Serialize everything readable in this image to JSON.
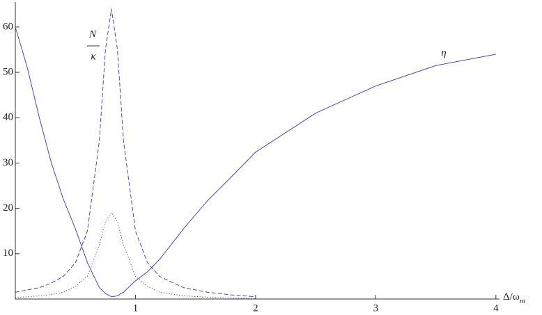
{
  "chart_data": {
    "type": "line",
    "x": [
      0,
      0.1,
      0.2,
      0.3,
      0.4,
      0.5,
      0.6,
      0.7,
      0.75,
      0.8,
      0.85,
      0.9,
      1.0,
      1.1,
      1.2,
      1.4,
      1.6,
      1.8,
      2.0,
      2.5,
      3.0,
      3.5,
      4.0
    ],
    "series": [
      {
        "color": "#4b4ba3",
        "dash": "solid",
        "values": [
          60,
          51,
          40,
          30,
          22,
          15.5,
          8,
          2.5,
          1.2,
          0.5,
          0.7,
          1.5,
          4,
          6,
          8.7,
          15.5,
          21.7,
          27,
          32.4,
          41,
          47,
          51.5,
          54
        ]
      },
      {
        "color": "#4b4ba3",
        "dash": "dashed",
        "values": [
          1.5,
          2,
          2.5,
          3.5,
          5,
          8,
          15,
          35,
          55,
          64,
          55,
          35,
          15,
          8,
          5,
          2.5,
          1.5,
          0.9,
          0.5,
          null,
          null,
          null,
          null
        ]
      },
      {
        "color": "#4b4ba3",
        "dash": "dotted",
        "values": [
          0.3,
          0.5,
          0.7,
          1,
          1.5,
          2.8,
          5,
          12,
          17,
          19,
          17,
          12,
          5,
          2.8,
          1.5,
          0.7,
          0.4,
          0.2,
          0.1,
          null,
          null,
          null,
          null
        ]
      }
    ],
    "xlabel": {
      "main": "Δ/ω",
      "sub": "m"
    },
    "annotations": {
      "numerator": "N",
      "denominator": "κ",
      "eta": "η"
    },
    "xlim": [
      0,
      4.03
    ],
    "ylim": [
      0,
      65.5
    ],
    "xticks": [
      1,
      2,
      3,
      4
    ],
    "yticks": [
      10,
      20,
      30,
      40,
      50,
      60
    ],
    "grid": false
  }
}
